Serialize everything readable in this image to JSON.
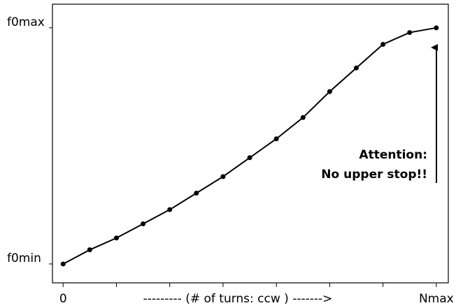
{
  "chart_data": {
    "type": "line",
    "x": [
      0,
      1,
      2,
      3,
      4,
      5,
      6,
      7,
      8,
      9,
      10,
      11,
      12,
      13,
      14
    ],
    "series": [
      {
        "name": null,
        "color": "#000000",
        "values": [
          0,
          0.06,
          0.11,
          0.17,
          0.23,
          0.3,
          0.37,
          0.45,
          0.53,
          0.62,
          0.73,
          0.83,
          0.93,
          0.98,
          1
        ]
      }
    ],
    "xlim": [
      -0.4,
      14.45
    ],
    "ylim": [
      -0.08,
      1.1
    ],
    "xticks": [
      0,
      {
        "value": 2,
        "label": null
      },
      {
        "value": 4,
        "label": null
      },
      {
        "value": 6,
        "label": null
      },
      {
        "value": 8,
        "label": null
      },
      {
        "value": 10,
        "label": null
      },
      {
        "value": 12,
        "label": null
      },
      {
        "value": 14,
        "label": "Nmax"
      }
    ],
    "yticks": [
      {
        "value": 0,
        "label": "f0min"
      },
      {
        "value": 1,
        "label": "f0max"
      }
    ],
    "x_label": "--------- (# of turns: ccw ) ------->",
    "annotations": [
      "Attention:",
      "No upper stop!!"
    ]
  }
}
